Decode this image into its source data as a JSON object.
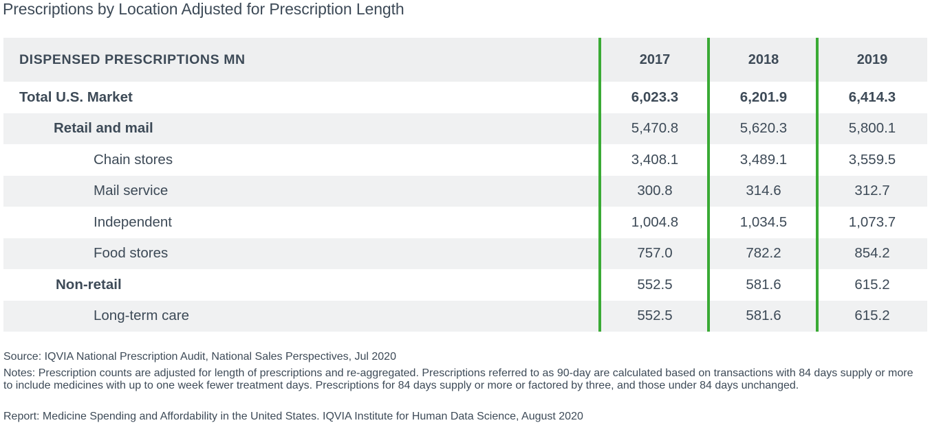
{
  "title": "Prescriptions by Location Adjusted for Prescription Length",
  "colors": {
    "accent_lines": "#3aaa35",
    "row_shade": "#f0f1f2",
    "text": "#3d4a57"
  },
  "chart_data": {
    "type": "table",
    "header": {
      "label": "DISPENSED PRESCRIPTIONS MN",
      "years": [
        "2017",
        "2018",
        "2019"
      ]
    },
    "rows": [
      {
        "label": "Total U.S. Market",
        "level": 0,
        "values": [
          "6,023.3",
          "6,201.9",
          "6,414.3"
        ]
      },
      {
        "label": "Retail and mail",
        "level": 1,
        "values": [
          "5,470.8",
          "5,620.3",
          "5,800.1"
        ]
      },
      {
        "label": "Chain stores",
        "level": 2,
        "values": [
          "3,408.1",
          "3,489.1",
          "3,559.5"
        ]
      },
      {
        "label": "Mail service",
        "level": 2,
        "values": [
          "300.8",
          "314.6",
          "312.7"
        ]
      },
      {
        "label": "Independent",
        "level": 2,
        "values": [
          "1,004.8",
          "1,034.5",
          "1,073.7"
        ]
      },
      {
        "label": "Food stores",
        "level": 2,
        "values": [
          "757.0",
          "782.2",
          "854.2"
        ]
      },
      {
        "label": "Non-retail",
        "level": 1,
        "values": [
          "552.5",
          "581.6",
          "615.2"
        ]
      },
      {
        "label": "Long-term care",
        "level": 2,
        "values": [
          "552.5",
          "581.6",
          "615.2"
        ]
      }
    ]
  },
  "footer": {
    "source": "Source: IQVIA National Prescription Audit, National Sales Perspectives, Jul 2020",
    "notes": "Notes: Prescription counts are adjusted for length of prescriptions and re-aggregated. Prescriptions referred to as 90-day are calculated based on transactions with 84 days supply or more to include medicines with up to one week fewer treatment days. Prescriptions for 84 days supply or more or factored by three, and those under 84 days unchanged.",
    "report": "Report: Medicine Spending and Affordability in the United States. IQVIA Institute for Human Data Science, August 2020"
  }
}
